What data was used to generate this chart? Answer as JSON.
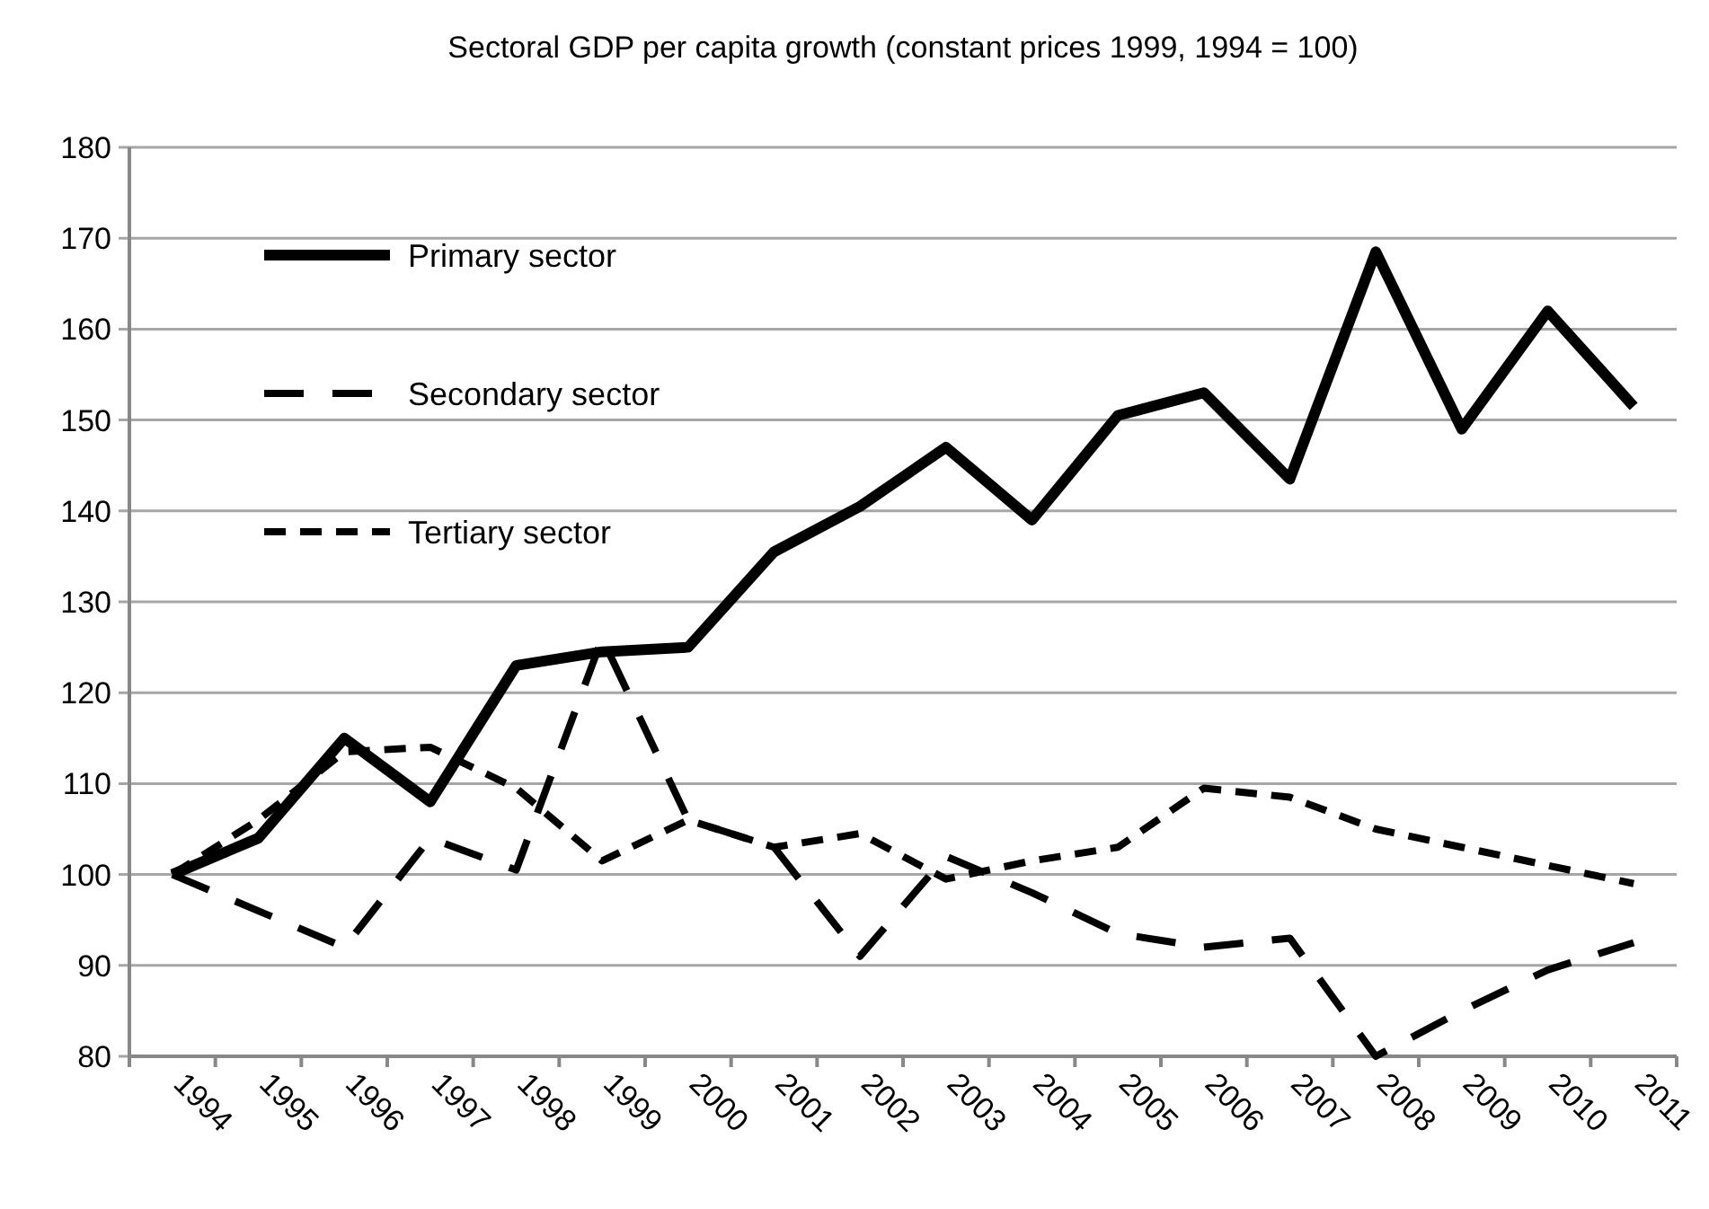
{
  "chart_data": {
    "type": "line",
    "title": "Sectoral GDP per capita growth (constant prices 1999, 1994 = 100)",
    "categories": [
      "1994",
      "1995",
      "1996",
      "1997",
      "1998",
      "1999",
      "2000",
      "2001",
      "2002",
      "2003",
      "2004",
      "2005",
      "2006",
      "2007",
      "2008",
      "2009",
      "2010",
      "2011"
    ],
    "series": [
      {
        "name": "Primary sector",
        "color": "#000000",
        "line_style": "solid",
        "values": [
          100,
          104,
          115,
          108,
          123,
          124.5,
          125,
          135.5,
          140.5,
          147,
          139,
          150.5,
          153,
          143.5,
          168.5,
          149,
          162,
          151.5
        ]
      },
      {
        "name": "Secondary sector",
        "color": "#000000",
        "line_style": "dashed",
        "values": [
          100,
          96,
          92,
          104,
          100.5,
          126,
          106,
          103,
          91,
          102,
          98,
          93.5,
          92,
          93,
          80,
          85,
          89.5,
          92.5
        ]
      },
      {
        "name": "Tertiary sector",
        "color": "#000000",
        "line_style": "dotted",
        "values": [
          100,
          106,
          113.5,
          114,
          109.5,
          101.5,
          106,
          103,
          104.5,
          99.5,
          101.5,
          103,
          109.5,
          108.5,
          105,
          103,
          101,
          99
        ]
      }
    ],
    "ylim": [
      80,
      180
    ],
    "yticks": [
      80,
      90,
      100,
      110,
      120,
      130,
      140,
      150,
      160,
      170,
      180
    ],
    "grid": "y",
    "legend": "top left"
  }
}
